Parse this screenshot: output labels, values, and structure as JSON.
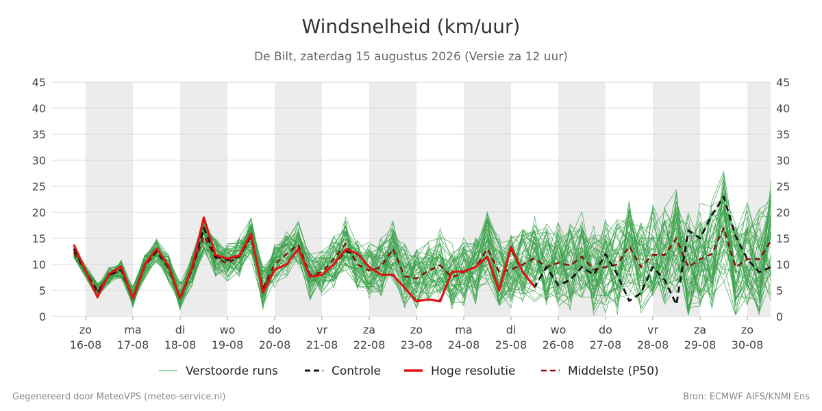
{
  "header": {
    "title": "Windsnelheid (km/uur)",
    "subtitle": "De Bilt, zaterdag 15 augustus 2026 (Versie za 12 uur)"
  },
  "footer": {
    "left": "Gegenereerd door MeteoVPS (meteo-service.nl)",
    "right": "Bron: ECMWF AIFS/KNMI Ens"
  },
  "colors": {
    "ensemble": "#3aa24a",
    "control": "#111111",
    "hires": "#e01414",
    "median": "#8b0c0c",
    "weekend_band": "#ececec",
    "grid": "#d9d9d9"
  },
  "chart_data": {
    "type": "line",
    "title": "Windsnelheid (km/uur)",
    "subtitle": "De Bilt, zaterdag 15 augustus 2026 (Versie za 12 uur)",
    "xlabel": "",
    "ylabel": "",
    "ylim": [
      0,
      45
    ],
    "yticks": [
      0,
      5,
      10,
      15,
      20,
      25,
      30,
      35,
      40,
      45
    ],
    "x_unit": "day index, 0 = zo 16-08 00:00, step 0.5 day",
    "days": [
      {
        "dow": "zo",
        "date": "16-08"
      },
      {
        "dow": "ma",
        "date": "17-08"
      },
      {
        "dow": "di",
        "date": "18-08"
      },
      {
        "dow": "wo",
        "date": "19-08"
      },
      {
        "dow": "do",
        "date": "20-08"
      },
      {
        "dow": "vr",
        "date": "21-08"
      },
      {
        "dow": "za",
        "date": "22-08"
      },
      {
        "dow": "zo",
        "date": "23-08"
      },
      {
        "dow": "ma",
        "date": "24-08"
      },
      {
        "dow": "di",
        "date": "25-08"
      },
      {
        "dow": "wo",
        "date": "26-08"
      },
      {
        "dow": "do",
        "date": "27-08"
      },
      {
        "dow": "vr",
        "date": "28-08"
      },
      {
        "dow": "za",
        "date": "29-08"
      },
      {
        "dow": "zo",
        "date": "30-08"
      }
    ],
    "shaded_days": [
      0,
      2,
      4,
      6,
      8,
      10,
      12,
      14
    ],
    "legend": {
      "placement": "bottom",
      "items": [
        {
          "label": "Verstoorde runs",
          "style": "thin-green"
        },
        {
          "label": "Controle",
          "style": "dashed-black"
        },
        {
          "label": "Hoge resolutie",
          "style": "solid-red"
        },
        {
          "label": "Middelste (P50)",
          "style": "dashed-darkred"
        }
      ]
    },
    "series": [
      {
        "name": "Hoge resolutie",
        "x": [
          -0.25,
          0.25,
          0.5,
          0.75,
          1.0,
          1.25,
          1.5,
          1.75,
          2.0,
          2.25,
          2.5,
          2.75,
          3.0,
          3.25,
          3.5,
          3.75,
          4.0,
          4.25,
          4.5,
          4.75,
          5.0,
          5.25,
          5.5,
          5.75,
          6.0,
          6.25,
          6.5,
          6.75,
          7.0,
          7.25,
          7.5,
          7.75,
          8.0,
          8.25,
          8.5,
          8.75,
          9.0,
          9.25,
          9.5
        ],
        "values": [
          13.8,
          3.7,
          8.2,
          9.6,
          3.4,
          10.0,
          13.0,
          9.8,
          3.5,
          9.4,
          19.0,
          11.8,
          11.1,
          11.7,
          15.9,
          4.6,
          9.0,
          10.0,
          13.0,
          7.6,
          8.0,
          10.0,
          12.9,
          12.1,
          9.5,
          8.0,
          8.0,
          5.5,
          2.9,
          3.3,
          2.9,
          8.6,
          8.6,
          9.5,
          11.5,
          5.0,
          13.3,
          8.5,
          5.7
        ]
      },
      {
        "name": "Controle",
        "x": [
          -0.25,
          0.25,
          0.5,
          0.75,
          1.0,
          1.25,
          1.5,
          1.75,
          2.0,
          2.25,
          2.5,
          2.75,
          3.0,
          3.25,
          3.5,
          3.75,
          4.0,
          4.25,
          4.5,
          4.75,
          5.0,
          5.25,
          5.5,
          5.75,
          6.0,
          6.25,
          6.5,
          6.75,
          7.0,
          7.25,
          7.5,
          7.75,
          8.0,
          8.25,
          8.5,
          8.75,
          9.0,
          9.25,
          9.5,
          9.75,
          10.0,
          10.25,
          10.5,
          10.75,
          11.0,
          11.25,
          11.5,
          11.75,
          12.0,
          12.25,
          12.5,
          12.75,
          13.0,
          13.25,
          13.5,
          13.75,
          14.0,
          14.25,
          14.5
        ],
        "values": [
          13.0,
          4.5,
          8.0,
          9.0,
          3.4,
          10.0,
          12.5,
          9.5,
          3.4,
          9.0,
          17.0,
          11.5,
          10.8,
          11.5,
          15.5,
          5.0,
          9.0,
          10.0,
          13.0,
          7.8,
          8.0,
          10.0,
          12.5,
          12.0,
          9.5,
          8.0,
          8.0,
          5.5,
          3.0,
          3.3,
          3.0,
          8.5,
          8.7,
          9.5,
          11.5,
          5.0,
          13.0,
          8.5,
          5.7,
          9.5,
          6.0,
          7.0,
          9.5,
          8.0,
          12.0,
          8.0,
          3.0,
          4.5,
          9.5,
          7.0,
          2.3,
          16.5,
          15.0,
          19.5,
          23.0,
          15.5,
          11.0,
          8.5,
          9.5
        ]
      },
      {
        "name": "Middelste (P50)",
        "x": [
          -0.25,
          0.25,
          0.5,
          0.75,
          1.0,
          1.25,
          1.5,
          1.75,
          2.0,
          2.25,
          2.5,
          2.75,
          3.0,
          3.25,
          3.5,
          3.75,
          4.0,
          4.25,
          4.5,
          4.75,
          5.0,
          5.25,
          5.5,
          5.75,
          6.0,
          6.25,
          6.5,
          6.75,
          7.0,
          7.25,
          7.5,
          7.75,
          8.0,
          8.25,
          8.5,
          8.75,
          9.0,
          9.25,
          9.5,
          9.75,
          10.0,
          10.25,
          10.5,
          10.75,
          11.0,
          11.25,
          11.5,
          11.75,
          12.0,
          12.25,
          12.5,
          12.75,
          13.0,
          13.25,
          13.5,
          13.75,
          14.0,
          14.25,
          14.5
        ],
        "values": [
          12.3,
          5.0,
          7.8,
          9.0,
          3.8,
          9.5,
          12.5,
          9.4,
          3.7,
          9.0,
          15.5,
          11.2,
          10.2,
          11.5,
          15.3,
          5.5,
          10.0,
          12.0,
          13.8,
          8.0,
          8.5,
          11.0,
          14.0,
          10.0,
          8.8,
          9.5,
          13.0,
          7.7,
          7.3,
          8.8,
          9.8,
          7.5,
          8.5,
          9.5,
          13.0,
          8.5,
          9.0,
          10.0,
          11.2,
          9.5,
          10.3,
          9.8,
          11.5,
          9.0,
          9.5,
          10.0,
          13.5,
          9.5,
          11.8,
          11.8,
          15.0,
          9.5,
          11.0,
          12.0,
          17.0,
          9.5,
          11.0,
          11.0,
          14.5
        ]
      }
    ],
    "ensemble_note": "50 thin green member traces spread roughly 1–40 km/uur around the median"
  }
}
